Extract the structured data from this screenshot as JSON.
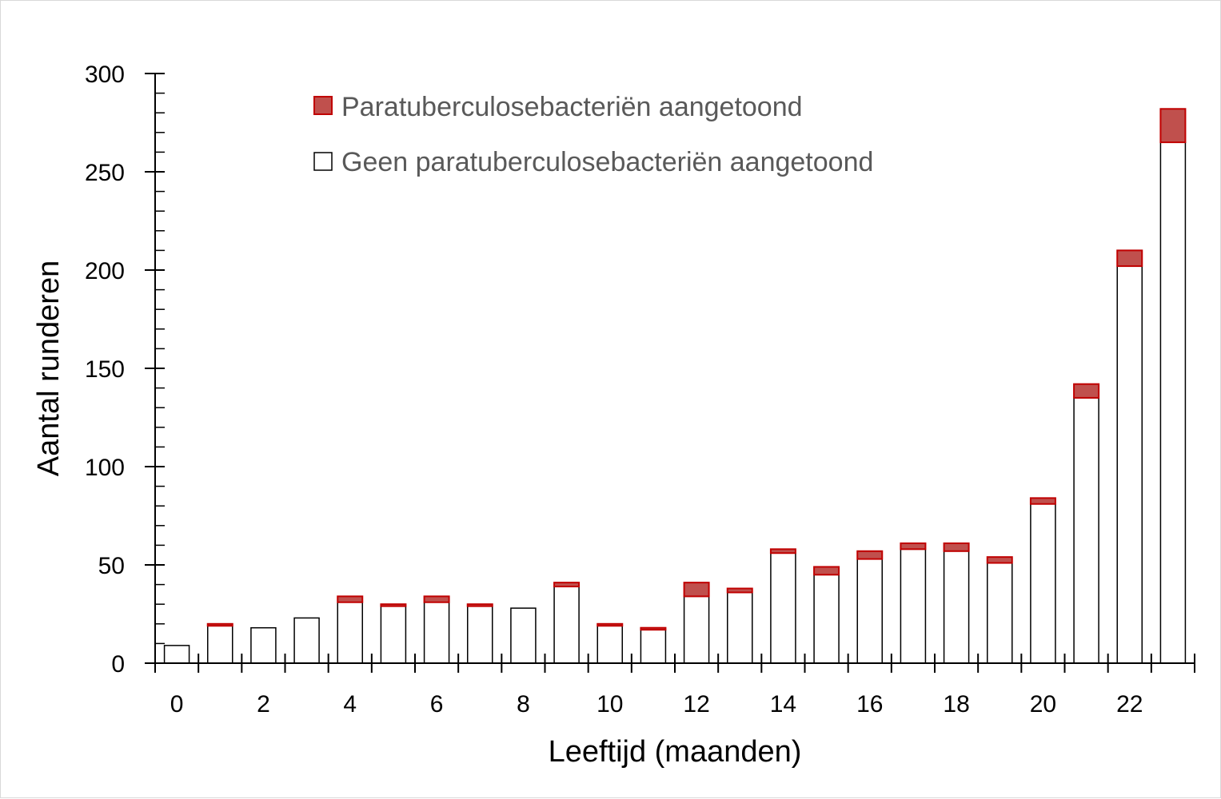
{
  "chart_data": {
    "type": "bar",
    "stacked": true,
    "title": "",
    "xlabel": "Leeftijd (maanden)",
    "ylabel": "Aantal runderen",
    "x": [
      0,
      1,
      2,
      3,
      4,
      5,
      6,
      7,
      8,
      9,
      10,
      11,
      12,
      13,
      14,
      15,
      16,
      17,
      18,
      19,
      20,
      21,
      22,
      23
    ],
    "x_tick_labels": [
      "0",
      "2",
      "4",
      "6",
      "8",
      "10",
      "12",
      "14",
      "16",
      "18",
      "20",
      "22"
    ],
    "y_tick_labels": [
      "0",
      "50",
      "100",
      "150",
      "200",
      "250",
      "300"
    ],
    "ylim": [
      0,
      300
    ],
    "series": [
      {
        "name": "Geen paratuberculosebacteriën aangetoond",
        "color": "#ffffff",
        "stroke": "#000000",
        "values": [
          9,
          19,
          18,
          23,
          31,
          29,
          31,
          29,
          28,
          39,
          19,
          17,
          34,
          36,
          56,
          45,
          53,
          58,
          57,
          51,
          81,
          135,
          202,
          265
        ]
      },
      {
        "name": "Paratuberculosebacteriën aangetoond",
        "color": "#c0504d",
        "stroke": "#c00000",
        "values": [
          0,
          1,
          0,
          0,
          3,
          1,
          3,
          1,
          0,
          2,
          1,
          1,
          7,
          2,
          2,
          4,
          4,
          3,
          4,
          3,
          3,
          7,
          8,
          17
        ]
      }
    ],
    "legend_position": "top-center",
    "grid": false
  }
}
